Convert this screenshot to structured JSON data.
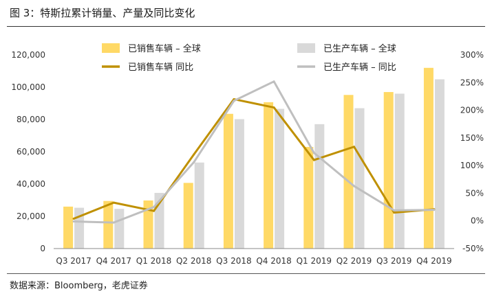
{
  "header": {
    "title": "图 3：特斯拉累计销量、产量及同比变化"
  },
  "footer": {
    "source": "数据来源：Bloomberg，老虎证券"
  },
  "chart_data": {
    "type": "bar",
    "title": "图 3：特斯拉累计销量、产量及同比变化",
    "categories": [
      "Q3 2017",
      "Q4 2017",
      "Q1 2018",
      "Q2 2018",
      "Q3 2018",
      "Q4 2018",
      "Q1 2019",
      "Q2 2019",
      "Q3 2019",
      "Q4 2019"
    ],
    "ylim": [
      0,
      120000
    ],
    "yticks": [
      "0",
      "20,000",
      "40,000",
      "60,000",
      "80,000",
      "100,000",
      "120,000"
    ],
    "y2lim": [
      -50,
      300
    ],
    "y2ticks": [
      "-50%",
      "0%",
      "50%",
      "100%",
      "150%",
      "200%",
      "250%",
      "300%"
    ],
    "grid": false,
    "legend_position": "top",
    "series": [
      {
        "name": "已销售车辆 – 全球",
        "kind": "bar",
        "axis": "left",
        "color": "#FFD966",
        "values": [
          26000,
          29500,
          29800,
          40700,
          83500,
          90700,
          63000,
          95200,
          97000,
          112000
        ]
      },
      {
        "name": "已生产车辆 – 全球",
        "kind": "bar",
        "axis": "left",
        "color": "#D9D9D9",
        "values": [
          25300,
          24600,
          34500,
          53300,
          80200,
          86600,
          77100,
          87000,
          96000,
          104900
        ]
      },
      {
        "name": "已销售车辆 同比",
        "kind": "line",
        "axis": "right",
        "color": "#BF9000",
        "values": [
          4,
          33,
          18,
          120,
          220,
          205,
          110,
          134,
          15,
          21
        ]
      },
      {
        "name": "已生产车辆 – 同比",
        "kind": "line",
        "axis": "right",
        "color": "#BFBFBF",
        "values": [
          -1,
          -3,
          25,
          106,
          217,
          252,
          123,
          63,
          19,
          20
        ]
      }
    ]
  }
}
